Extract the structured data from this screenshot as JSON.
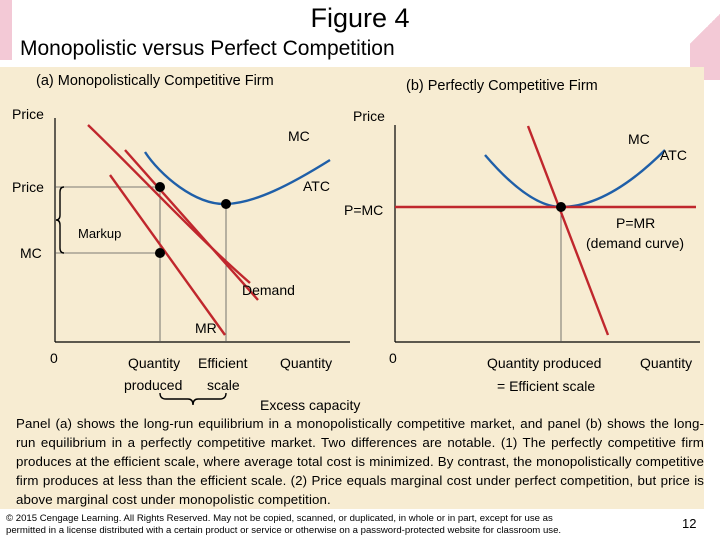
{
  "slide": {
    "title": "Figure 4",
    "subtitle": "Monopolistic versus Perfect Competition",
    "page_number": "12",
    "copyright_line1": "© 2015 Cengage Learning. All Rights Reserved. May not be copied, scanned, or duplicated, in whole or in part, except for use as",
    "copyright_line2": "permitted in a license distributed with a certain product or service or otherwise on a password-protected website for classroom use.",
    "caption": "Panel (a) shows the long-run equilibrium in a monopolistically competitive market, and panel (b) shows the long-run equilibrium in a perfectly competitive market. Two differences are notable. (1) The perfectly competitive firm produces at the efficient scale, where average total cost is minimized. By contrast, the monopolistically competitive firm produces at less than the efficient scale. (2) Price equals marginal cost under perfect competition, but price is above marginal cost under monopolistic competition."
  },
  "panel_a": {
    "heading": "(a) Monopolistically Competitive Firm",
    "y_axis_label": "Price",
    "origin": "0",
    "price_label": "Price",
    "mc_level_label": "MC",
    "markup_label": "Markup",
    "mc_curve_label": "MC",
    "atc_curve_label": "ATC",
    "demand_label": "Demand",
    "mr_label": "MR",
    "qty_produced_line1": "Quantity",
    "qty_produced_line2": "produced",
    "efficient_scale_line1": "Efficient",
    "efficient_scale_line2": "scale",
    "x_axis_label": "Quantity",
    "excess_capacity_label": "Excess capacity"
  },
  "panel_b": {
    "heading": "(b) Perfectly Competitive Firm",
    "y_axis_label": "Price",
    "origin": "0",
    "mc_curve_label": "MC",
    "atc_curve_label": "ATC",
    "price_level_label": "P=MC",
    "demand_line1": "P=MR",
    "demand_line2": "(demand curve)",
    "qty_line1": "Quantity produced",
    "qty_line2": "= Efficient scale",
    "x_axis_label": "Quantity"
  },
  "colors": {
    "panel_background": "#f7ecd2",
    "cost_curve_red": "#c0272d",
    "atc_blue": "#1f5fa8",
    "marker": "#000000"
  }
}
